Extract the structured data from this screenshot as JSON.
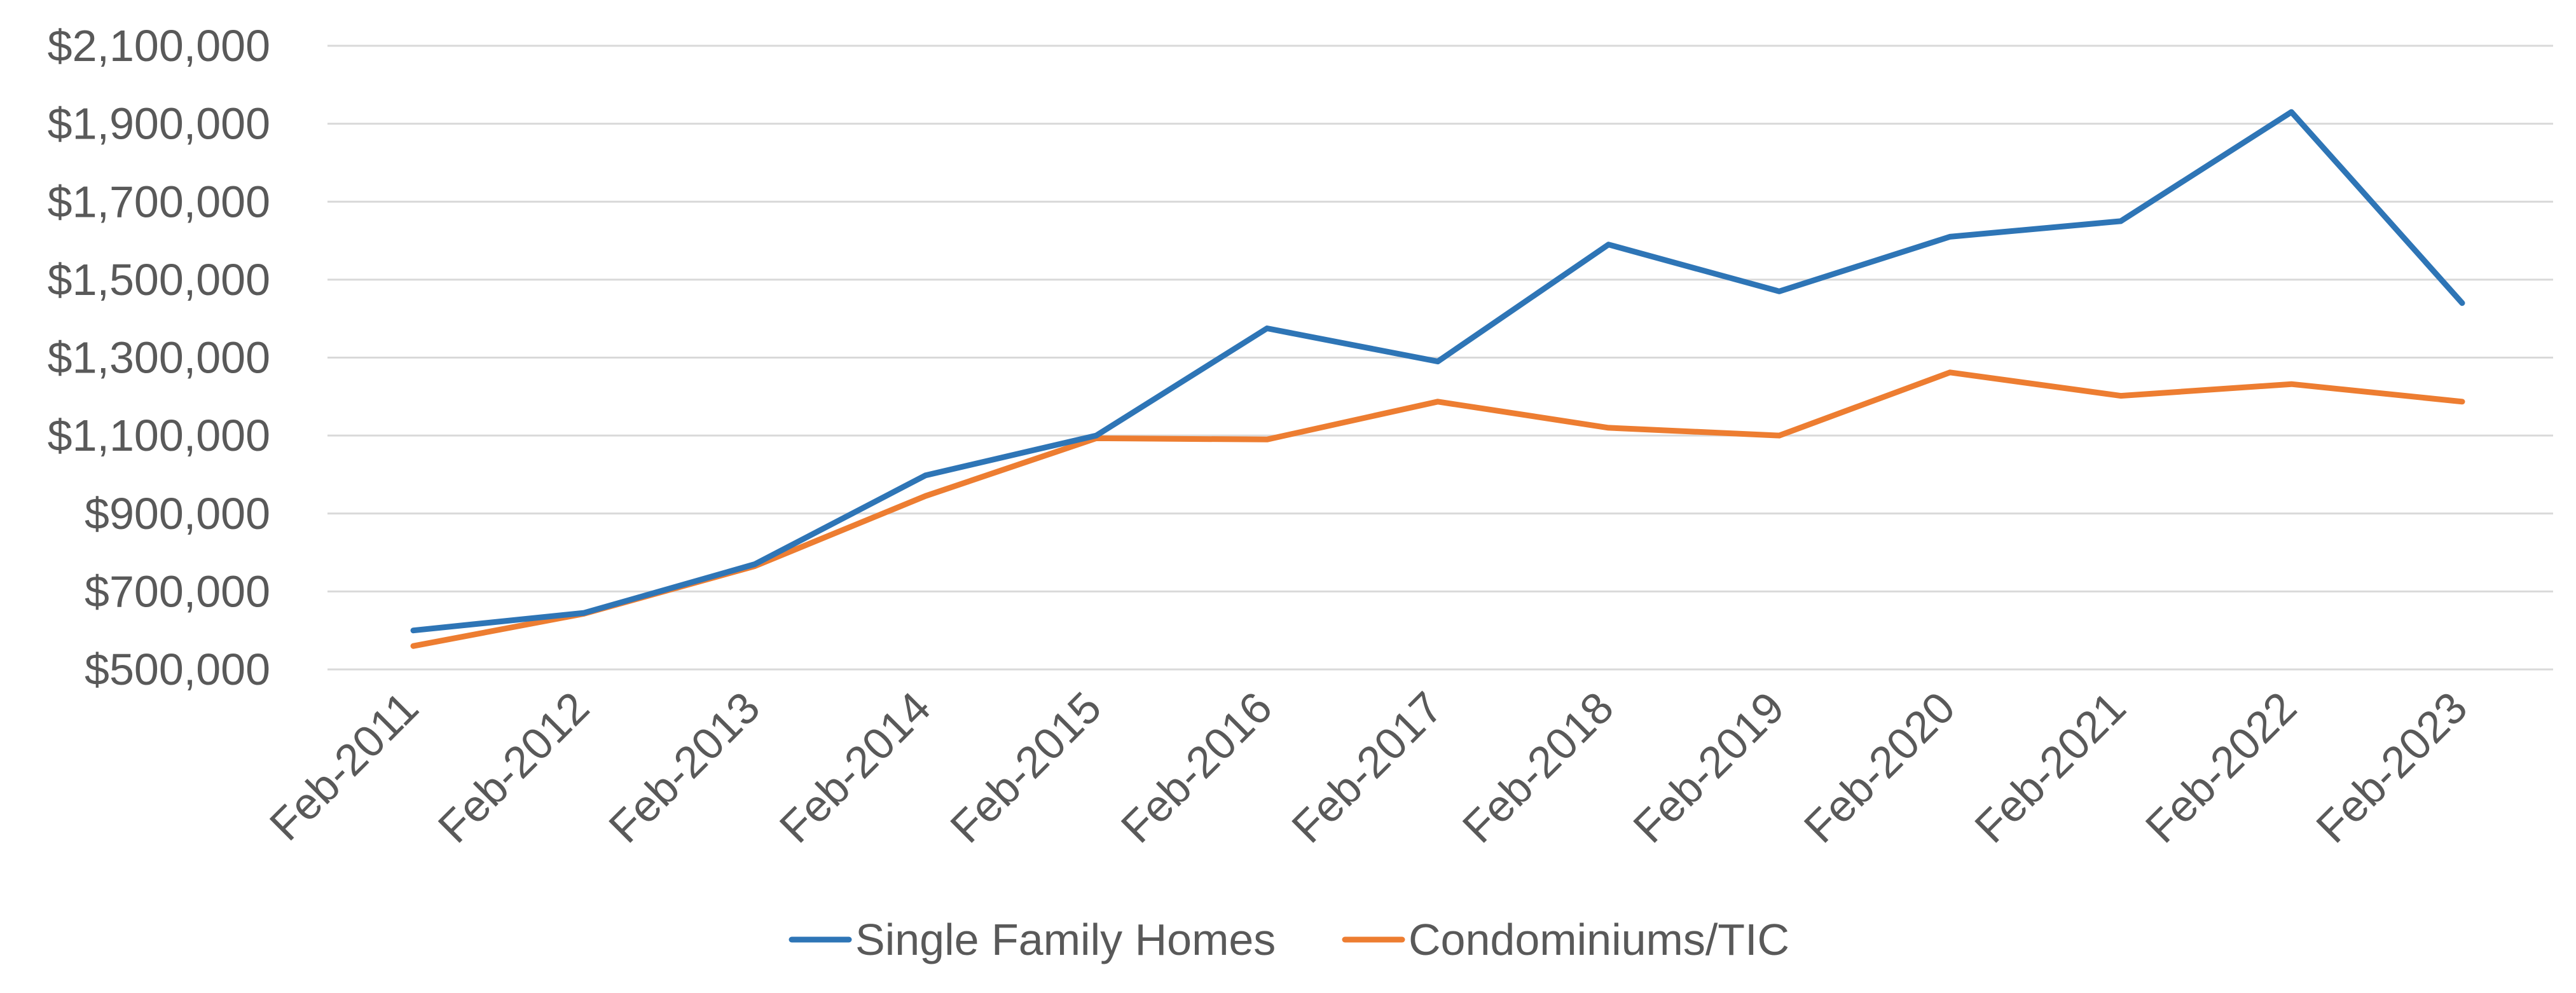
{
  "chart_data": {
    "type": "line",
    "title": "",
    "xlabel": "",
    "ylabel": "",
    "categories": [
      "Feb-2011",
      "Feb-2012",
      "Feb-2013",
      "Feb-2014",
      "Feb-2015",
      "Feb-2016",
      "Feb-2017",
      "Feb-2018",
      "Feb-2019",
      "Feb-2020",
      "Feb-2021",
      "Feb-2022",
      "Feb-2023"
    ],
    "y_ticks": [
      "$500,000",
      "$700,000",
      "$900,000",
      "$1,100,000",
      "$1,300,000",
      "$1,500,000",
      "$1,700,000",
      "$1,900,000",
      "$2,100,000"
    ],
    "y_tick_values": [
      500000,
      700000,
      900000,
      1100000,
      1300000,
      1500000,
      1700000,
      1900000,
      2100000
    ],
    "ylim": [
      500000,
      2100000
    ],
    "grid": "horizontal",
    "legend": "bottom",
    "series": [
      {
        "name": "Single Family Homes",
        "color": "#2e75b6",
        "values": [
          600000,
          645000,
          770000,
          998000,
          1100000,
          1375000,
          1290000,
          1590000,
          1470000,
          1610000,
          1650000,
          1930000,
          1440000
        ]
      },
      {
        "name": "Condominiums/TIC",
        "color": "#ed7d31",
        "values": [
          560000,
          643000,
          765000,
          945000,
          1093000,
          1090000,
          1187000,
          1120000,
          1100000,
          1262000,
          1202000,
          1232000,
          1187000
        ]
      }
    ]
  }
}
